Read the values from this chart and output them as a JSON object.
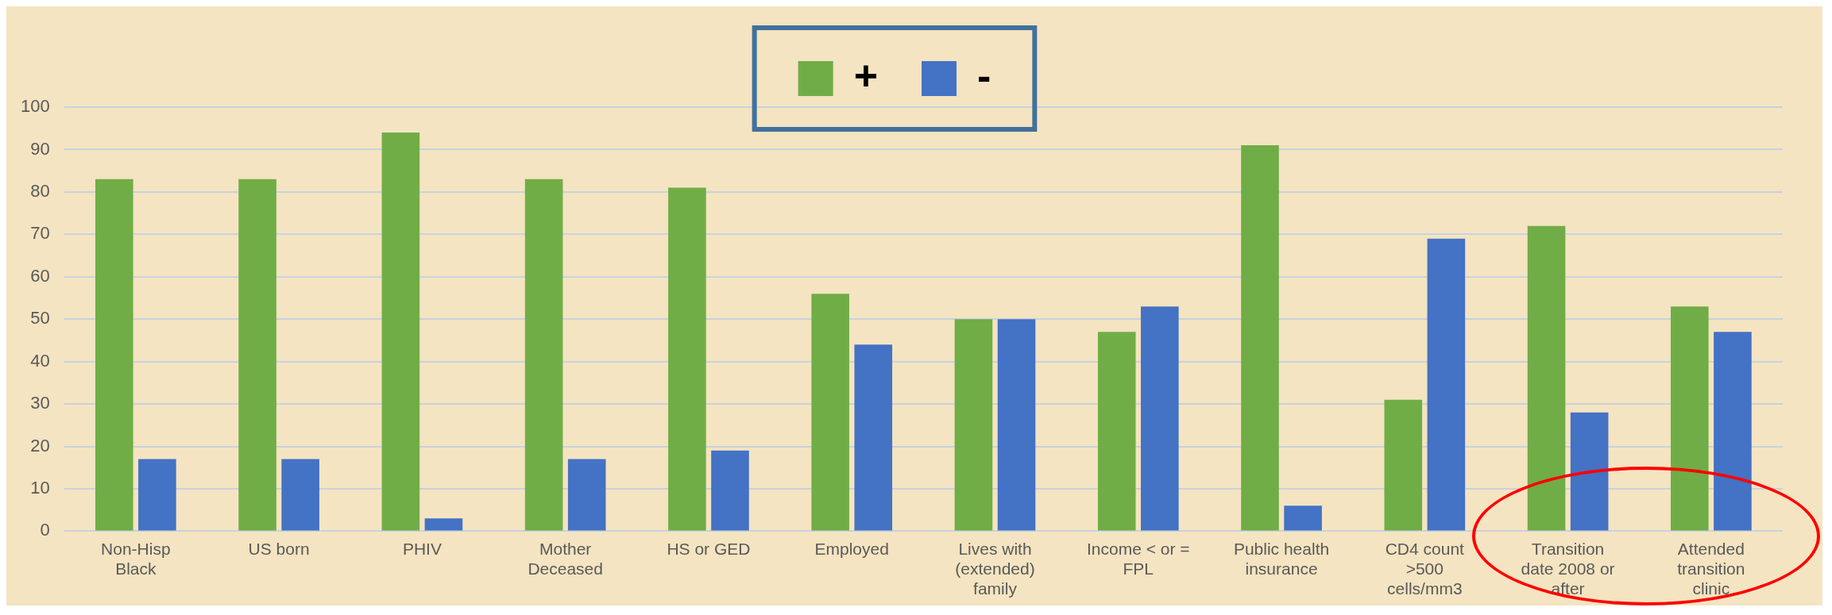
{
  "chart_data": {
    "type": "bar",
    "categories": [
      "Non-Hisp Black",
      "US born",
      "PHIV",
      "Mother Deceased",
      "HS or GED",
      "Employed",
      "Lives with (extended) family",
      "Income < or = FPL",
      "Public health insurance",
      "CD4 count >500 cells/mm3",
      "Transition date 2008 or after",
      "Attended transition clinic"
    ],
    "series": [
      {
        "name": "+",
        "color": "#70ad47",
        "values": [
          83,
          83,
          94,
          83,
          81,
          56,
          50,
          47,
          91,
          31,
          72,
          53
        ]
      },
      {
        "name": "-",
        "color": "#4472c4",
        "values": [
          17,
          17,
          3,
          17,
          19,
          44,
          50,
          53,
          6,
          69,
          28,
          47
        ]
      }
    ],
    "ylim": [
      0,
      100
    ],
    "yticks": [
      0,
      10,
      20,
      30,
      40,
      50,
      60,
      70,
      80,
      90,
      100
    ],
    "grid": "y",
    "legend": "top"
  }
}
